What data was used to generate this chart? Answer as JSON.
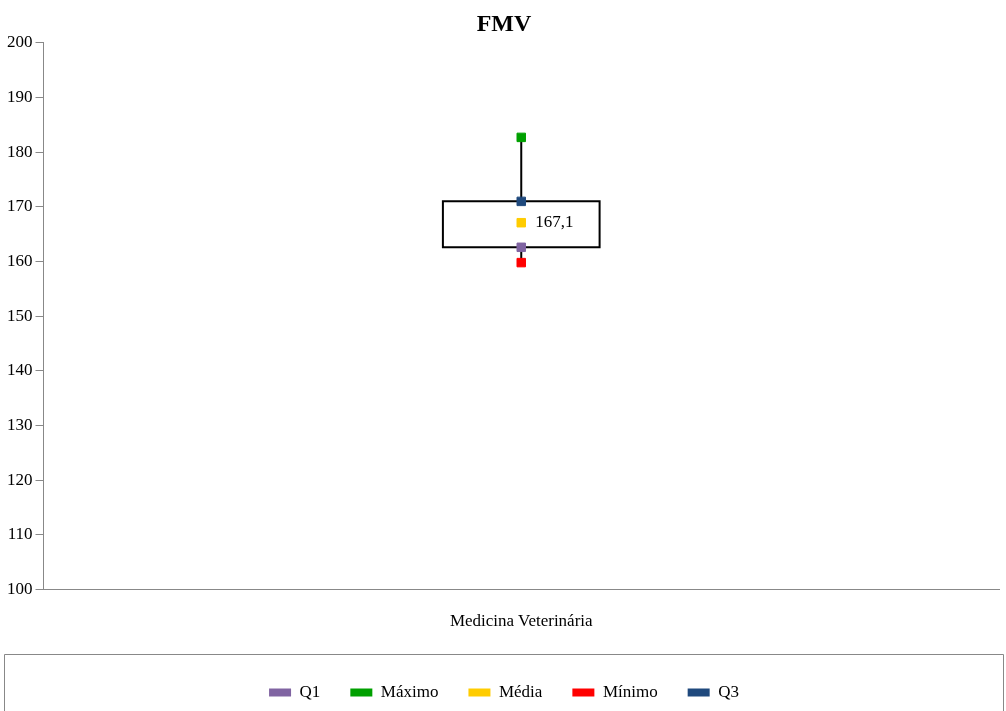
{
  "chart_data": {
    "type": "box",
    "title": "FMV",
    "categories": [
      "Medicina Veterinária"
    ],
    "boxes": [
      {
        "low": 159.8,
        "q1": 162.6,
        "q3": 171,
        "high": 182.7
      }
    ],
    "series": [
      {
        "name": "Q1",
        "type": "scatter",
        "color": "#8064a2",
        "values": [
          162.6
        ]
      },
      {
        "name": "Máximo",
        "type": "scatter",
        "color": "#00a000",
        "values": [
          182.7
        ]
      },
      {
        "name": "Média",
        "type": "scatter",
        "color": "#ffcc00",
        "values": [
          167.1
        ],
        "value_labels": [
          "167,1"
        ]
      },
      {
        "name": "Mínimo",
        "type": "scatter",
        "color": "#ff0000",
        "values": [
          159.8
        ]
      },
      {
        "name": "Q3",
        "type": "scatter",
        "color": "#1f497d",
        "values": [
          171
        ]
      }
    ],
    "ylim": [
      100,
      200
    ],
    "yticks": [
      100,
      110,
      120,
      130,
      140,
      150,
      160,
      170,
      180,
      190,
      200
    ],
    "legend": "bottom"
  }
}
